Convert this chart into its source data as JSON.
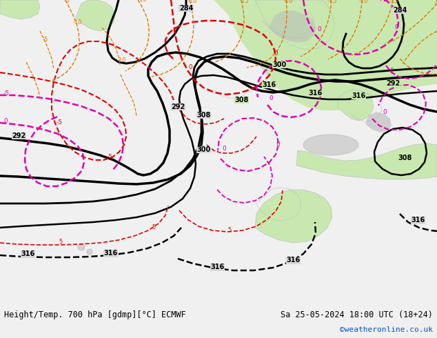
{
  "title_left": "Height/Temp. 700 hPa [gdmp][°C] ECMWF",
  "title_right": "Sa 25-05-2024 18:00 UTC (18+24)",
  "watermark": "©weatheronline.co.uk",
  "ocean_color": "#d8d8d8",
  "land_color": "#c8e8b0",
  "gray_land_color": "#b8b8b8",
  "bottom_bar_color": "#f0f0f0",
  "bottom_text_color": "#000000",
  "watermark_color": "#0055cc",
  "geopot_color": "#000000",
  "temp_red_color": "#dd0000",
  "temp_magenta_color": "#dd00aa",
  "temp_orange_color": "#dd7700"
}
